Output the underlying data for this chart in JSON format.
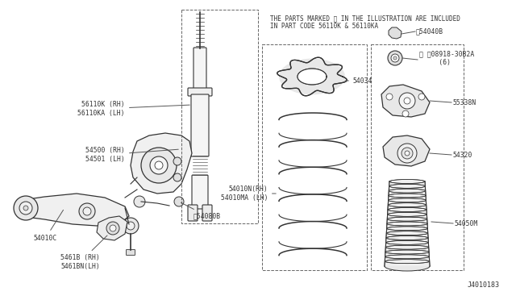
{
  "bg_color": "#ffffff",
  "line_color": "#333333",
  "text_color": "#333333",
  "header_text_line1": "THE PARTS MARKED ※ IN THE ILLUSTRATION ARE INCLUDED",
  "header_text_line2": "IN PART CODE 56110K & 56110KA",
  "footer_text": "J4010183",
  "fig_w": 6.4,
  "fig_h": 3.72,
  "dpi": 100
}
